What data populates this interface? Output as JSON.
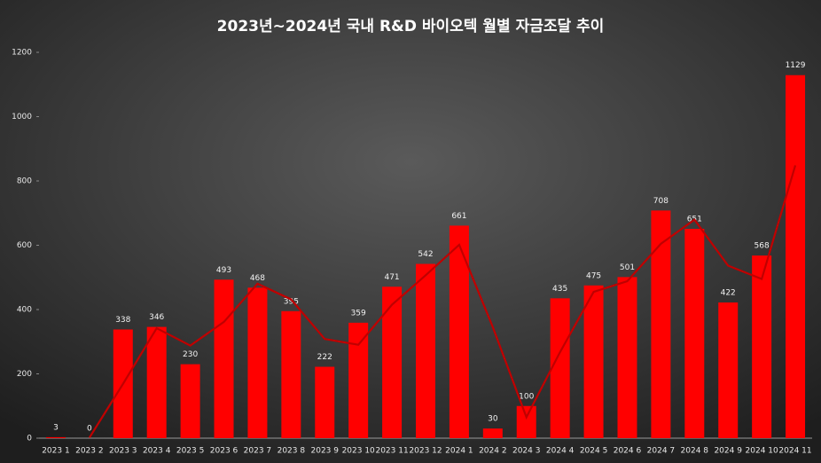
{
  "chart_data": {
    "type": "bar",
    "title": "2023년~2024년 국내 R&D 바이오텍 월별 자금조달 추이",
    "categories": [
      "2023 1",
      "2023 2",
      "2023 3",
      "2023 4",
      "2023 5",
      "2023 6",
      "2023 7",
      "2023 8",
      "2023 9",
      "2023 10",
      "2023 11",
      "2023 12",
      "2024 1",
      "2024 2",
      "2024 3",
      "2024 4",
      "2024 5",
      "2024 6",
      "2024 7",
      "2024 8",
      "2024 9",
      "2024 10",
      "2024 11"
    ],
    "series": [
      {
        "type": "bar",
        "color": "#ff0000",
        "values": [
          3,
          0,
          338,
          346,
          230,
          493,
          468,
          395,
          222,
          359,
          471,
          542,
          661,
          30,
          100,
          435,
          475,
          501,
          708,
          651,
          422,
          568,
          1129
        ]
      },
      {
        "type": "line",
        "color": "#c00000",
        "values": [
          null,
          1.5,
          169,
          342,
          288,
          361.5,
          480.5,
          431.5,
          308.5,
          290.5,
          415,
          506.5,
          601.5,
          345.5,
          65,
          267.5,
          455,
          488,
          604.5,
          679.5,
          536.5,
          495,
          848.5
        ]
      }
    ],
    "ylim": [
      0,
      1200
    ],
    "yticks": [
      0,
      200,
      400,
      600,
      800,
      1000,
      1200
    ],
    "data_labels": true
  }
}
